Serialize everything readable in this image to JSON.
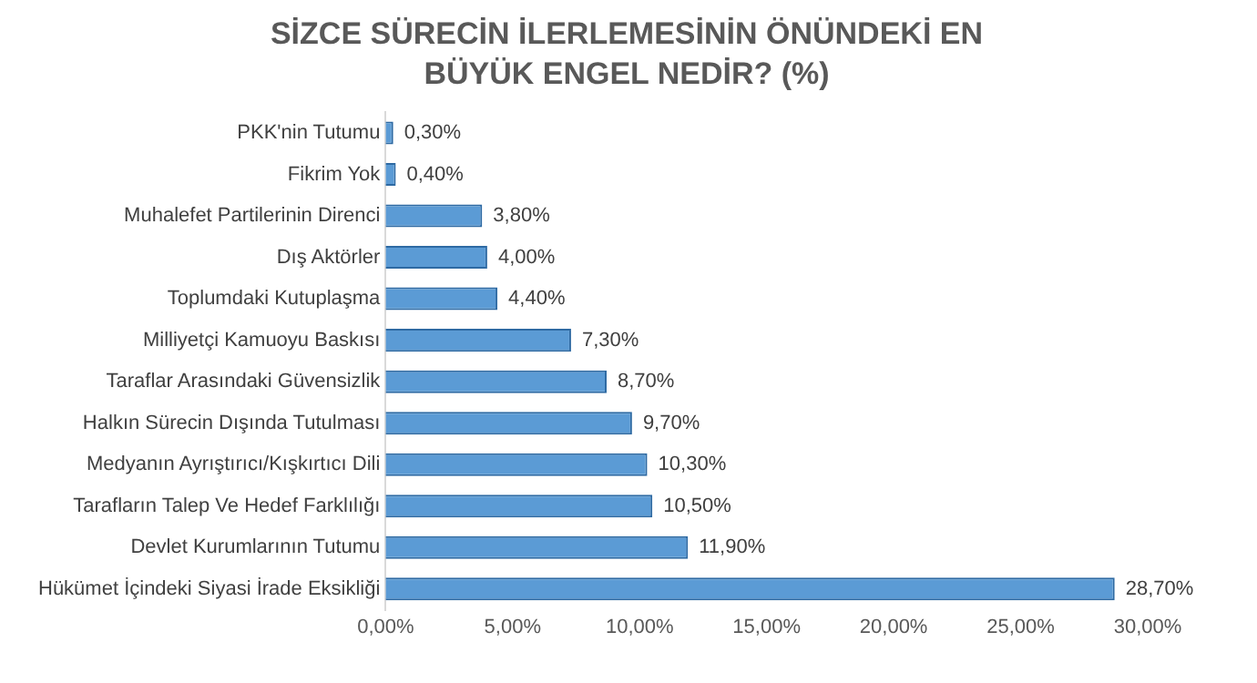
{
  "chart_data": {
    "type": "bar",
    "orientation": "horizontal",
    "title": "SİZCE SÜRECİN İLERLEMESİNİN ÖNÜNDEKİ EN BÜYÜK ENGEL NEDİR? (%)",
    "categories": [
      "PKK'nin Tutumu",
      "Fikrim Yok",
      "Muhalefet Partilerinin Direnci",
      "Dış Aktörler",
      "Toplumdaki Kutuplaşma",
      "Milliyetçi Kamuoyu Baskısı",
      "Taraflar Arasındaki Güvensizlik",
      "Halkın Sürecin Dışında Tutulması",
      "Medyanın Ayrıştırıcı/Kışkırtıcı Dili",
      "Tarafların Talep Ve Hedef Farklılığı",
      "Devlet Kurumlarının Tutumu",
      "Hükümet İçindeki Siyasi İrade Eksikliği"
    ],
    "values": [
      0.3,
      0.4,
      3.8,
      4.0,
      4.4,
      7.3,
      8.7,
      9.7,
      10.3,
      10.5,
      11.9,
      28.7
    ],
    "value_labels": [
      "0,30%",
      "0,40%",
      "3,80%",
      "4,00%",
      "4,40%",
      "7,30%",
      "8,70%",
      "9,70%",
      "10,30%",
      "10,50%",
      "11,90%",
      "28,70%"
    ],
    "color": "#5b9bd5",
    "xlim": [
      0,
      30
    ],
    "xticks": [
      {
        "value": 0,
        "label": "0,00%"
      },
      {
        "value": 5,
        "label": "5,00%"
      },
      {
        "value": 10,
        "label": "10,00%"
      },
      {
        "value": 15,
        "label": "15,00%"
      },
      {
        "value": 20,
        "label": "20,00%"
      },
      {
        "value": 25,
        "label": "25,00%"
      },
      {
        "value": 30,
        "label": "30,00%"
      }
    ],
    "grid": false,
    "legend": false
  }
}
